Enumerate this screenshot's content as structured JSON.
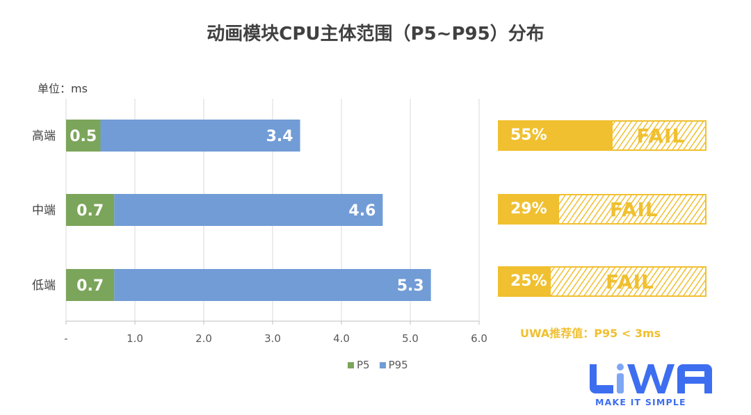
{
  "chart_data": {
    "type": "bar",
    "orientation": "horizontal-stacked",
    "title": "动画模块CPU主体范围（P5~P95）分布",
    "unit_label": "单位：ms",
    "categories": [
      "高端",
      "中端",
      "低端"
    ],
    "series": [
      {
        "name": "P5",
        "values": [
          0.5,
          0.7,
          0.7
        ],
        "color": "#7ba55a"
      },
      {
        "name": "P95",
        "values": [
          3.4,
          4.6,
          5.3
        ],
        "color": "#719cd6"
      }
    ],
    "xlim": [
      0,
      6
    ],
    "xticks": [
      "-",
      "1.0",
      "2.0",
      "3.0",
      "4.0",
      "5.0",
      "6.0"
    ],
    "grid": true,
    "legend": "bottom"
  },
  "pass_rates": [
    {
      "percent": 55,
      "label": "55%",
      "status": "FAIL"
    },
    {
      "percent": 29,
      "label": "29%",
      "status": "FAIL"
    },
    {
      "percent": 25,
      "label": "25%",
      "status": "FAIL"
    }
  ],
  "recommendation": "UWA推荐值：P95 < 3ms",
  "logo": {
    "text": "UWA",
    "tagline": "MAKE IT SIMPLE",
    "color": "#3d6ef0"
  }
}
